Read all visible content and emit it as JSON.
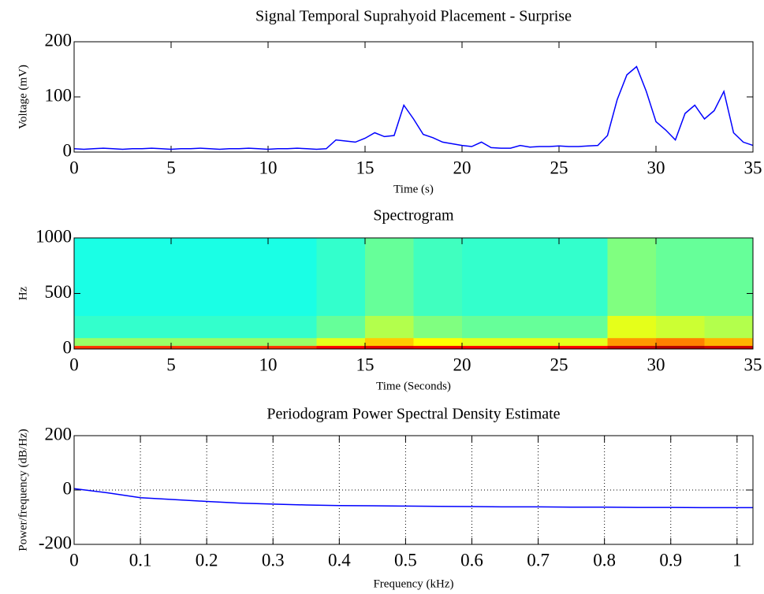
{
  "chart_data": [
    {
      "type": "line",
      "title": "Signal Temporal Suprahyoid Placement - Surprise",
      "x_label": "Time (s)",
      "y_label": "Voltage (mV)",
      "x": [
        0,
        0.5,
        1,
        1.5,
        2,
        2.5,
        3,
        3.5,
        4,
        4.5,
        5,
        5.5,
        6,
        6.5,
        7,
        7.5,
        8,
        8.5,
        9,
        9.5,
        10,
        10.5,
        11,
        11.5,
        12,
        12.5,
        13,
        13.5,
        14,
        14.5,
        15,
        15.5,
        16,
        16.5,
        17,
        17.5,
        18,
        18.5,
        19,
        19.5,
        20,
        20.5,
        21,
        21.5,
        22,
        22.5,
        23,
        23.5,
        24,
        24.5,
        25,
        25.5,
        26,
        26.5,
        27,
        27.5,
        28,
        28.5,
        29,
        29.5,
        30,
        30.5,
        31,
        31.5,
        32,
        32.5,
        33,
        33.5,
        34,
        34.5,
        35
      ],
      "values": [
        6,
        5,
        6,
        7,
        6,
        5,
        6,
        6,
        7,
        6,
        5,
        6,
        6,
        7,
        6,
        5,
        6,
        6,
        7,
        6,
        5,
        6,
        6,
        7,
        6,
        5,
        6,
        22,
        20,
        18,
        25,
        35,
        28,
        30,
        85,
        60,
        32,
        26,
        18,
        15,
        12,
        10,
        18,
        8,
        7,
        7,
        12,
        9,
        10,
        10,
        11,
        10,
        10,
        11,
        12,
        30,
        95,
        140,
        155,
        110,
        55,
        40,
        22,
        70,
        85,
        60,
        75,
        110,
        35,
        18,
        12
      ],
      "color": "#0000ff",
      "xlim": [
        0,
        35
      ],
      "ylim": [
        0,
        200
      ],
      "xticks": [
        0,
        5,
        10,
        15,
        20,
        25,
        30,
        35
      ],
      "yticks": [
        0,
        100,
        200
      ],
      "grid": false
    },
    {
      "type": "heatmap",
      "title": "Spectrogram",
      "x_label": "Time (Seconds)",
      "y_label": "Hz",
      "x_bins": [
        0,
        2.5,
        5,
        7.5,
        10,
        12.5,
        15,
        17.5,
        20,
        22.5,
        25,
        27.5,
        30,
        32.5,
        35
      ],
      "y_bins": [
        0,
        30,
        100,
        300,
        1000
      ],
      "z": [
        [
          -14,
          -14,
          -14,
          -14,
          -14,
          -10,
          -8,
          -9,
          -10,
          -10,
          -10,
          -6,
          -4,
          -6
        ],
        [
          -38,
          -38,
          -38,
          -38,
          -38,
          -32,
          -26,
          -30,
          -32,
          -32,
          -32,
          -22,
          -20,
          -24
        ],
        [
          -46,
          -46,
          -46,
          -46,
          -46,
          -42,
          -36,
          -40,
          -42,
          -42,
          -42,
          -32,
          -34,
          -36
        ],
        [
          -48,
          -48,
          -48,
          -48,
          -48,
          -46,
          -42,
          -45,
          -46,
          -46,
          -46,
          -40,
          -42,
          -42
        ]
      ],
      "colormap": "jet",
      "clim": [
        -80,
        0
      ],
      "xlim": [
        0,
        35
      ],
      "ylim": [
        0,
        1000
      ],
      "xticks": [
        0,
        5,
        10,
        15,
        20,
        25,
        30,
        35
      ],
      "yticks": [
        0,
        500,
        1000
      ],
      "grid": false
    },
    {
      "type": "line",
      "title": "Periodogram Power Spectral Density Estimate",
      "x_label": "Frequency (kHz)",
      "y_label": "Power/frequency (dB/Hz)",
      "x": [
        0,
        0.05,
        0.1,
        0.15,
        0.2,
        0.25,
        0.3,
        0.35,
        0.4,
        0.45,
        0.5,
        0.55,
        0.6,
        0.65,
        0.7,
        0.75,
        0.8,
        0.85,
        0.9,
        0.95,
        1.0,
        1.024
      ],
      "values": [
        5,
        -10,
        -28,
        -35,
        -42,
        -48,
        -52,
        -55,
        -57,
        -58,
        -59,
        -60,
        -61,
        -62,
        -62,
        -63,
        -63,
        -64,
        -64,
        -65,
        -65,
        -65
      ],
      "color": "#0000ff",
      "xlim": [
        0,
        1.024
      ],
      "ylim": [
        -200,
        200
      ],
      "xticks": [
        0,
        0.1,
        0.2,
        0.3,
        0.4,
        0.5,
        0.6,
        0.7,
        0.8,
        0.9,
        1
      ],
      "yticks": [
        -200,
        0,
        200
      ],
      "grid": true
    }
  ]
}
